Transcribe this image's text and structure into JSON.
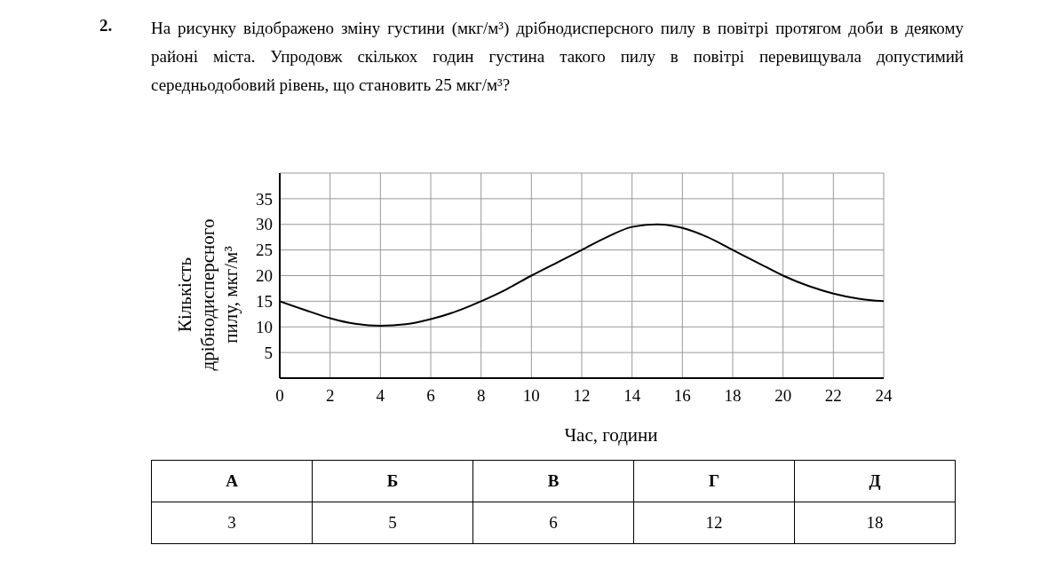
{
  "chart_data": {
    "type": "line",
    "title": "На рисунку відображено зміну густини (мкг/м³) дрібнодисперсного пилу в повітрі протягом доби в деякому районі міста. Упродовж скількох годин густина такого пилу в повітрі перевищувала допустимий середньодобовий рівень, що становить 25 мкг/м³?",
    "xlabel": "Час, години",
    "ylabel": "Кількість дрібнодисперсного пилу, мкг/м³",
    "x": [
      0,
      1,
      2,
      3,
      4,
      5,
      6,
      7,
      8,
      9,
      10,
      11,
      12,
      13,
      14,
      15,
      16,
      17,
      18,
      19,
      20,
      21,
      22,
      23,
      24
    ],
    "values": [
      15,
      13.3,
      11.7,
      10.6,
      10.2,
      10.5,
      11.5,
      13,
      15,
      17.3,
      20,
      22.5,
      25,
      27.5,
      29.5,
      30,
      29.3,
      27.5,
      25,
      22.5,
      20,
      18,
      16.5,
      15.5,
      15
    ],
    "color": "#000000",
    "marker": "none",
    "xlim": [
      0,
      24
    ],
    "xticks": [
      0,
      2,
      4,
      6,
      8,
      10,
      12,
      14,
      16,
      18,
      20,
      22,
      24
    ],
    "ylim": [
      0,
      40
    ],
    "yticks": [
      {
        "value": 0,
        "label": null
      },
      5,
      10,
      15,
      20,
      25,
      30,
      35,
      {
        "value": 40,
        "label": null
      }
    ],
    "grid": true,
    "annotations": [
      "2.",
      "А",
      "Б",
      "В",
      "Г",
      "Д",
      "3",
      "5",
      "6",
      "12",
      "18"
    ]
  }
}
